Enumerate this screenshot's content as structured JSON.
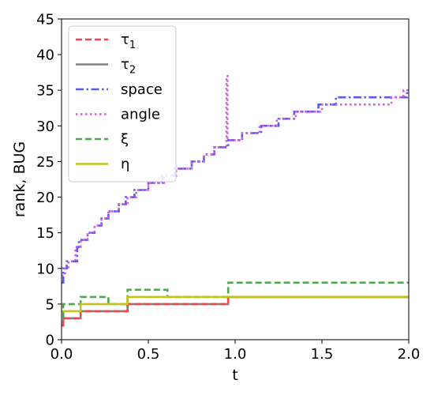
{
  "chart_data": {
    "type": "line",
    "title": "",
    "xlabel": "t",
    "ylabel": "rank, BUG",
    "xlim": [
      0,
      2.0
    ],
    "ylim": [
      0,
      45
    ],
    "x_ticks": [
      0.0,
      0.5,
      1.0,
      1.5,
      2.0
    ],
    "x_tick_labels": [
      "0.0",
      "0.5",
      "1.0",
      "1.5",
      "2.0"
    ],
    "y_ticks": [
      0,
      5,
      10,
      15,
      20,
      25,
      30,
      35,
      40,
      45
    ],
    "y_tick_labels": [
      "0",
      "5",
      "10",
      "15",
      "20",
      "25",
      "30",
      "35",
      "40",
      "45"
    ],
    "grid": false,
    "legend": {
      "position": "top-left",
      "entries": [
        {
          "label": "τ",
          "subscript": "1",
          "style": "dashed",
          "color": "#f04848"
        },
        {
          "label": "τ",
          "subscript": "2",
          "style": "solid",
          "color": "#808080"
        },
        {
          "label": "space",
          "subscript": "",
          "style": "dashdot",
          "color": "#5b5bef"
        },
        {
          "label": "angle",
          "subscript": "",
          "style": "dotted",
          "color": "#d85bd8"
        },
        {
          "label": "ξ",
          "subscript": "",
          "style": "dashed",
          "color": "#4ca84c"
        },
        {
          "label": "η",
          "subscript": "",
          "style": "solid",
          "color": "#c2c21a"
        }
      ]
    },
    "series": [
      {
        "name": "space",
        "color": "#5b5bef",
        "style": "dashdot",
        "steps": [
          [
            0.0,
            8
          ],
          [
            0.01,
            10
          ],
          [
            0.03,
            11
          ],
          [
            0.09,
            13
          ],
          [
            0.1,
            14
          ],
          [
            0.15,
            15
          ],
          [
            0.19,
            16
          ],
          [
            0.23,
            17
          ],
          [
            0.27,
            18
          ],
          [
            0.33,
            19
          ],
          [
            0.37,
            20
          ],
          [
            0.42,
            21
          ],
          [
            0.5,
            22
          ],
          [
            0.58,
            23
          ],
          [
            0.65,
            24
          ],
          [
            0.75,
            25
          ],
          [
            0.82,
            26
          ],
          [
            0.88,
            27
          ],
          [
            0.96,
            28
          ],
          [
            1.04,
            29
          ],
          [
            1.15,
            30
          ],
          [
            1.25,
            31
          ],
          [
            1.34,
            32
          ],
          [
            1.48,
            33
          ],
          [
            1.58,
            34
          ],
          [
            1.99,
            35
          ],
          [
            2.0,
            35
          ]
        ]
      },
      {
        "name": "angle",
        "color": "#d85bd8",
        "style": "dotted",
        "steps": [
          [
            0.0,
            9
          ],
          [
            0.02,
            10
          ],
          [
            0.04,
            11
          ],
          [
            0.08,
            13
          ],
          [
            0.11,
            14
          ],
          [
            0.15,
            15
          ],
          [
            0.19,
            16
          ],
          [
            0.23,
            17
          ],
          [
            0.27,
            18
          ],
          [
            0.33,
            19
          ],
          [
            0.38,
            20
          ],
          [
            0.43,
            21
          ],
          [
            0.5,
            22
          ],
          [
            0.59,
            23
          ],
          [
            0.66,
            24
          ],
          [
            0.75,
            25
          ],
          [
            0.82,
            26
          ],
          [
            0.88,
            27
          ],
          [
            0.95,
            37
          ],
          [
            0.956,
            28
          ],
          [
            1.04,
            29
          ],
          [
            1.14,
            30
          ],
          [
            1.24,
            31
          ],
          [
            1.35,
            32
          ],
          [
            1.5,
            33
          ],
          [
            1.9,
            34
          ],
          [
            1.97,
            35
          ],
          [
            2.0,
            35
          ]
        ]
      },
      {
        "name": "ξ",
        "color": "#4ca84c",
        "style": "dashed",
        "steps": [
          [
            0.0,
            2
          ],
          [
            0.01,
            5
          ],
          [
            0.11,
            6
          ],
          [
            0.27,
            5
          ],
          [
            0.38,
            7
          ],
          [
            0.61,
            6
          ],
          [
            0.96,
            8
          ],
          [
            2.0,
            8
          ]
        ]
      },
      {
        "name": "τ₂",
        "color": "#808080",
        "style": "solid",
        "steps": [
          [
            0.0,
            2
          ],
          [
            0.01,
            3
          ],
          [
            0.11,
            4
          ],
          [
            0.38,
            5
          ],
          [
            0.96,
            6
          ],
          [
            2.0,
            6
          ]
        ]
      },
      {
        "name": "τ₁",
        "color": "#f04848",
        "style": "dashed",
        "steps": [
          [
            0.0,
            2
          ],
          [
            0.01,
            3
          ],
          [
            0.11,
            4
          ],
          [
            0.38,
            5
          ],
          [
            0.96,
            6
          ],
          [
            2.0,
            6
          ]
        ]
      },
      {
        "name": "η",
        "color": "#c2c21a",
        "style": "solid",
        "steps": [
          [
            0.0,
            4
          ],
          [
            0.11,
            5
          ],
          [
            0.38,
            6
          ],
          [
            2.0,
            6
          ]
        ]
      }
    ]
  }
}
